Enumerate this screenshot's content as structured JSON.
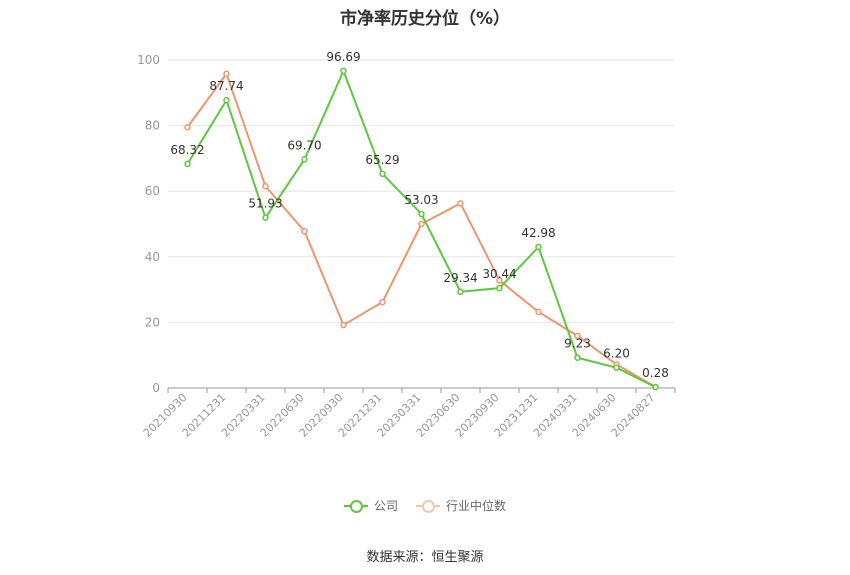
{
  "chart_data": {
    "type": "line",
    "title": "市净率历史分位（%）",
    "categories": [
      "20210930",
      "20211231",
      "20220331",
      "20220630",
      "20220930",
      "20221231",
      "20230331",
      "20230630",
      "20230930",
      "20231231",
      "20240331",
      "20240630",
      "20240827"
    ],
    "ylim": [
      0,
      100
    ],
    "yticks": [
      0,
      20,
      40,
      60,
      80,
      100
    ],
    "grid": true,
    "legend_position": "bottom",
    "series": [
      {
        "name": "公司",
        "color": "#5cc93d",
        "values": [
          68.32,
          87.74,
          51.93,
          69.7,
          96.69,
          65.29,
          53.03,
          29.34,
          30.44,
          42.98,
          9.23,
          6.2,
          0.28
        ],
        "labels": [
          "68.32",
          "87.74",
          "51.93",
          "69.70",
          "96.69",
          "65.29",
          "53.03",
          "29.34",
          "30.44",
          "42.98",
          "9.23",
          "6.20",
          "0.28"
        ]
      },
      {
        "name": "行业中位数",
        "color": "#f0956b",
        "values": [
          79.5,
          95.8,
          61.5,
          47.8,
          19.2,
          26.2,
          50.0,
          56.3,
          32.8,
          23.2,
          15.9,
          7.2,
          0.3
        ]
      }
    ],
    "source": "数据来源：恒生聚源"
  }
}
